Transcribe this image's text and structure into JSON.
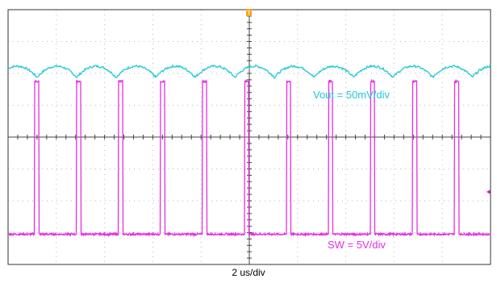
{
  "chart_data": {
    "type": "line",
    "title": "",
    "xlabel": "2 us/div",
    "ylabel": "",
    "grid": true,
    "divisions": {
      "horizontal": 10,
      "vertical": 8
    },
    "trigger_marker": "T",
    "series": [
      {
        "name": "Vout = 50mV/div",
        "color": "#1ec8d8",
        "kind": "ripple",
        "volts_per_div": "50mV/div",
        "baseline_div": 2.05,
        "peak_to_peak_div": 0.35,
        "period_div": 0.82,
        "phase_div": 0.6,
        "label": "Vout = 50mV/div"
      },
      {
        "name": "SW = 5V/div",
        "color": "#e62ee0",
        "kind": "pulse",
        "volts_per_div": "5V/div",
        "baseline_div": -3.05,
        "high_div": 1.75,
        "period_div": 0.87,
        "first_edge_div": 0.55,
        "pulse_width_div": 0.09,
        "label": "SW = 5V/div"
      }
    ]
  }
}
